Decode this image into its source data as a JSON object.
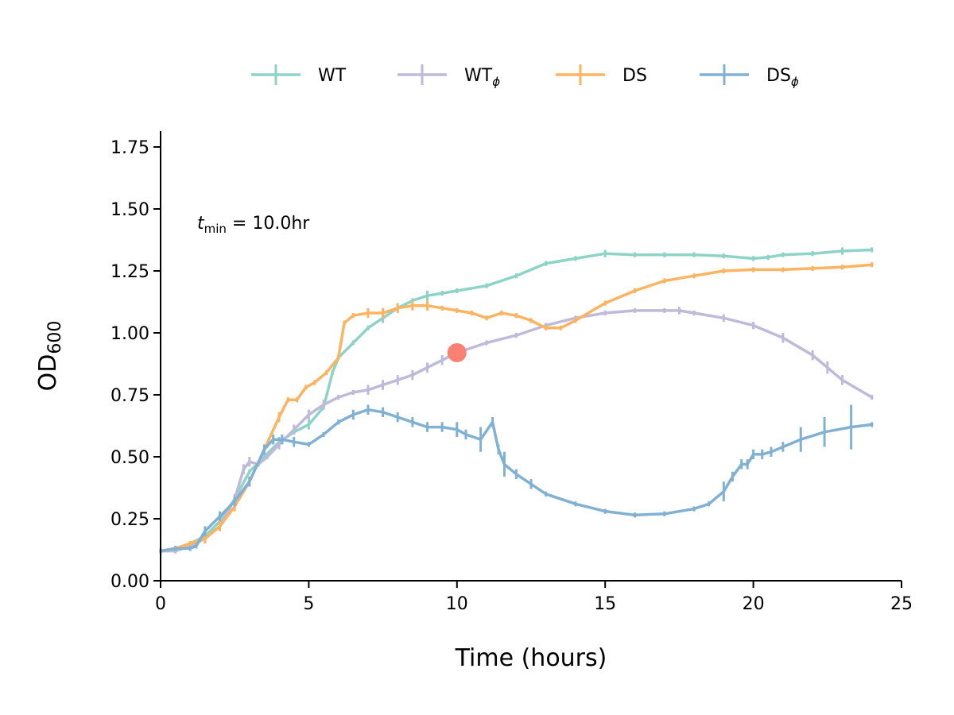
{
  "chart_data": {
    "type": "line",
    "xlabel": "Time (hours)",
    "ylabel": {
      "main": "OD",
      "sub": "600"
    },
    "xlim": [
      0,
      25
    ],
    "ylim": [
      0,
      1.8
    ],
    "x_ticks": [
      0,
      5,
      10,
      15,
      20,
      25
    ],
    "x_tick_labels": [
      "0",
      "5",
      "10",
      "15",
      "20",
      "25"
    ],
    "y_ticks": [
      0,
      0.25,
      0.5,
      0.75,
      1.0,
      1.25,
      1.5,
      1.75
    ],
    "y_tick_labels": [
      "0.00",
      "0.25",
      "0.50",
      "0.75",
      "1.00",
      "1.25",
      "1.50",
      "1.75"
    ],
    "grid": false,
    "legend_position": "top-center",
    "annotation": {
      "var": "t",
      "sub": "min",
      "rest": " = 10.0hr"
    },
    "marker_point": {
      "x": 10.0,
      "y": 0.92,
      "color": "#fa8072"
    },
    "series": [
      {
        "name": "WT",
        "name_sub": "",
        "color": "#8dd3c7",
        "x": [
          0,
          0.5,
          1,
          1.5,
          2,
          2.5,
          3,
          3.5,
          4,
          4.5,
          5,
          5.5,
          5.8,
          6,
          6.5,
          7,
          7.5,
          8,
          8.5,
          9,
          9.5,
          10,
          11,
          12,
          13,
          14,
          15,
          16,
          17,
          18,
          19,
          20,
          20.5,
          21,
          22,
          23,
          24
        ],
        "y": [
          0.12,
          0.13,
          0.15,
          0.18,
          0.24,
          0.33,
          0.44,
          0.5,
          0.56,
          0.6,
          0.63,
          0.7,
          0.84,
          0.9,
          0.96,
          1.02,
          1.06,
          1.1,
          1.13,
          1.15,
          1.16,
          1.17,
          1.19,
          1.23,
          1.28,
          1.3,
          1.32,
          1.315,
          1.315,
          1.315,
          1.31,
          1.3,
          1.305,
          1.315,
          1.32,
          1.33,
          1.335
        ],
        "err": [
          0.01,
          0.01,
          0.01,
          0.02,
          0.02,
          0.02,
          0.01,
          0.01,
          0.02,
          0.01,
          0.02,
          0.01,
          0.01,
          0.01,
          0.01,
          0.01,
          0.02,
          0.01,
          0.01,
          0.02,
          0.01,
          0.01,
          0.01,
          0.01,
          0.01,
          0.01,
          0.015,
          0.01,
          0.01,
          0.01,
          0.01,
          0.01,
          0.01,
          0.01,
          0.01,
          0.015,
          0.01
        ]
      },
      {
        "name": "WT",
        "name_sub": "ϕ",
        "color": "#bebada",
        "x": [
          0,
          0.5,
          1,
          1.5,
          2,
          2.5,
          2.8,
          3,
          3.3,
          3.6,
          4,
          4.5,
          5,
          5.5,
          6,
          6.5,
          7,
          7.5,
          8,
          8.5,
          9,
          9.5,
          10,
          11,
          12,
          13,
          14,
          15,
          16,
          17,
          17.5,
          18,
          19,
          20,
          21,
          22,
          22.5,
          23,
          24
        ],
        "y": [
          0.12,
          0.12,
          0.14,
          0.17,
          0.22,
          0.33,
          0.45,
          0.48,
          0.47,
          0.5,
          0.55,
          0.61,
          0.67,
          0.71,
          0.74,
          0.76,
          0.77,
          0.79,
          0.81,
          0.83,
          0.86,
          0.89,
          0.92,
          0.96,
          0.99,
          1.03,
          1.06,
          1.08,
          1.09,
          1.09,
          1.09,
          1.08,
          1.06,
          1.03,
          0.98,
          0.91,
          0.86,
          0.81,
          0.74
        ],
        "err": [
          0.01,
          0.01,
          0.01,
          0.02,
          0.02,
          0.02,
          0.02,
          0.02,
          0.01,
          0.01,
          0.02,
          0.02,
          0.02,
          0.02,
          0.01,
          0.01,
          0.02,
          0.02,
          0.02,
          0.02,
          0.02,
          0.02,
          0.01,
          0.01,
          0.01,
          0.01,
          0.01,
          0.01,
          0.01,
          0.01,
          0.015,
          0.01,
          0.015,
          0.015,
          0.02,
          0.02,
          0.025,
          0.02,
          0.01
        ]
      },
      {
        "name": "DS",
        "name_sub": "",
        "color": "#fdb462",
        "x": [
          0,
          0.5,
          1,
          1.5,
          2,
          2.5,
          3,
          3.5,
          4,
          4.3,
          4.6,
          4.9,
          5.2,
          5.6,
          6,
          6.2,
          6.5,
          7,
          7.5,
          8,
          8.5,
          9,
          9.5,
          10,
          10.5,
          11,
          11.5,
          12,
          12.5,
          13,
          13.5,
          14,
          15,
          16,
          17,
          18,
          19,
          20,
          21,
          22,
          23,
          24
        ],
        "y": [
          0.12,
          0.13,
          0.15,
          0.17,
          0.22,
          0.3,
          0.4,
          0.53,
          0.66,
          0.73,
          0.73,
          0.78,
          0.8,
          0.84,
          0.9,
          1.04,
          1.07,
          1.08,
          1.08,
          1.1,
          1.11,
          1.11,
          1.1,
          1.09,
          1.08,
          1.06,
          1.08,
          1.07,
          1.05,
          1.02,
          1.02,
          1.05,
          1.12,
          1.17,
          1.21,
          1.23,
          1.25,
          1.255,
          1.255,
          1.26,
          1.265,
          1.275
        ],
        "err": [
          0.01,
          0.01,
          0.01,
          0.02,
          0.02,
          0.02,
          0.02,
          0.02,
          0.02,
          0.01,
          0.01,
          0.01,
          0.01,
          0.01,
          0.01,
          0.01,
          0.01,
          0.02,
          0.02,
          0.02,
          0.02,
          0.02,
          0.01,
          0.01,
          0.01,
          0.01,
          0.01,
          0.01,
          0.01,
          0.01,
          0.01,
          0.01,
          0.01,
          0.01,
          0.01,
          0.01,
          0.01,
          0.01,
          0.01,
          0.01,
          0.01,
          0.01
        ]
      },
      {
        "name": "DS",
        "name_sub": "ϕ",
        "color": "#80b1d3",
        "x": [
          0,
          0.5,
          1,
          1.2,
          1.5,
          2,
          2.5,
          3,
          3.5,
          3.8,
          4.1,
          4.5,
          5,
          5.5,
          6,
          6.5,
          7,
          7.5,
          8,
          8.5,
          9,
          9.5,
          10,
          10.3,
          10.8,
          11.2,
          11.4,
          11.6,
          12,
          12.5,
          13,
          14,
          15,
          16,
          17,
          18,
          18.5,
          19,
          19.3,
          19.6,
          19.8,
          20,
          20.3,
          20.6,
          21,
          21.6,
          22.4,
          23.3,
          24
        ],
        "y": [
          0.12,
          0.13,
          0.13,
          0.14,
          0.2,
          0.26,
          0.32,
          0.4,
          0.53,
          0.57,
          0.57,
          0.56,
          0.55,
          0.59,
          0.64,
          0.67,
          0.69,
          0.68,
          0.66,
          0.64,
          0.62,
          0.62,
          0.61,
          0.59,
          0.57,
          0.64,
          0.53,
          0.47,
          0.43,
          0.39,
          0.35,
          0.31,
          0.28,
          0.265,
          0.27,
          0.29,
          0.31,
          0.36,
          0.42,
          0.47,
          0.47,
          0.51,
          0.51,
          0.52,
          0.54,
          0.57,
          0.6,
          0.62,
          0.63
        ],
        "err": [
          0.01,
          0.01,
          0.01,
          0.01,
          0.02,
          0.02,
          0.02,
          0.02,
          0.02,
          0.02,
          0.02,
          0.02,
          0.01,
          0.01,
          0.01,
          0.02,
          0.02,
          0.02,
          0.02,
          0.02,
          0.02,
          0.02,
          0.03,
          0.02,
          0.05,
          0.02,
          0.02,
          0.05,
          0.02,
          0.02,
          0.01,
          0.01,
          0.01,
          0.01,
          0.01,
          0.01,
          0.01,
          0.04,
          0.02,
          0.02,
          0.02,
          0.02,
          0.02,
          0.02,
          0.02,
          0.05,
          0.06,
          0.09,
          0.01
        ]
      }
    ]
  }
}
